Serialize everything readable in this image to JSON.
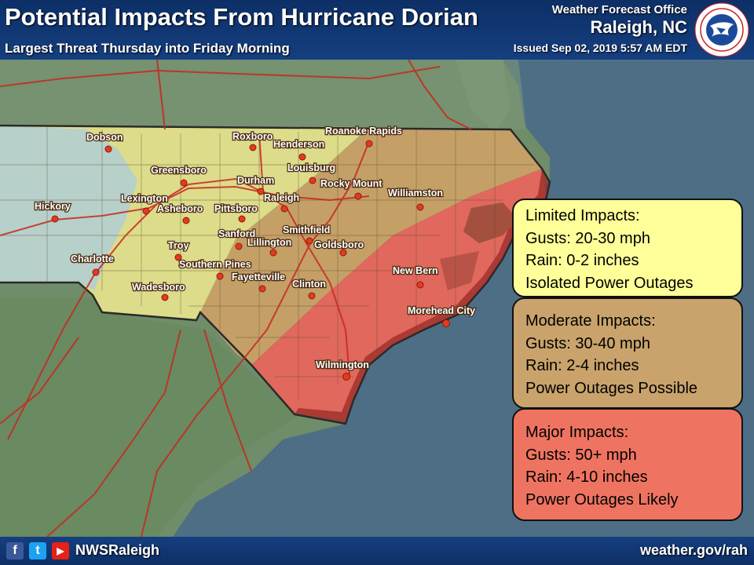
{
  "header": {
    "title": "Potential Impacts From Hurricane Dorian",
    "subtitle": "Largest Threat Thursday into Friday Morning",
    "office": "Weather Forecast Office",
    "office_city": "Raleigh, NC",
    "issued": "Issued Sep 02, 2019 5:57 AM EDT",
    "logo_text": "NATIONAL WEATHER SERVICE"
  },
  "legend": [
    {
      "title": "Limited Impacts:",
      "gusts": "Gusts: 20-30 mph",
      "rain": "Rain: 0-2 inches",
      "outages": "Isolated Power Outages",
      "color": "#ffff99"
    },
    {
      "title": "Moderate Impacts:",
      "gusts": "Gusts: 30-40 mph",
      "rain": "Rain: 2-4 inches",
      "outages": "Power Outages Possible",
      "color": "#c9a36b"
    },
    {
      "title": "Major Impacts:",
      "gusts": "Gusts: 50+ mph",
      "rain": "Rain: 4-10 inches",
      "outages": "Power Outages Likely",
      "color": "#ee7461"
    }
  ],
  "cities": [
    "Dobson",
    "Roxboro",
    "Roanoke Rapids",
    "Henderson",
    "Greensboro",
    "Louisburg",
    "Durham",
    "Rocky Mount",
    "Raleigh",
    "Williamston",
    "Hickory",
    "Lexington",
    "Asheboro",
    "Pittsboro",
    "Sanford",
    "Smithfield",
    "Lillington",
    "Goldsboro",
    "Troy",
    "Charlotte",
    "Southern Pines",
    "New Bern",
    "Fayetteville",
    "Clinton",
    "Wadesboro",
    "Morehead City",
    "Wilmington"
  ],
  "footer": {
    "facebook_icon": "f",
    "twitter_icon": "t",
    "youtube_icon": "▶",
    "handle": "NWSRaleigh",
    "website": "weather.gov/rah"
  },
  "colors": {
    "limited": "#ffff99",
    "moderate": "#c9a36b",
    "major": "#ee7461",
    "header": "#153f80",
    "ocean": "#4e6e86",
    "land": "#6e8a66"
  }
}
